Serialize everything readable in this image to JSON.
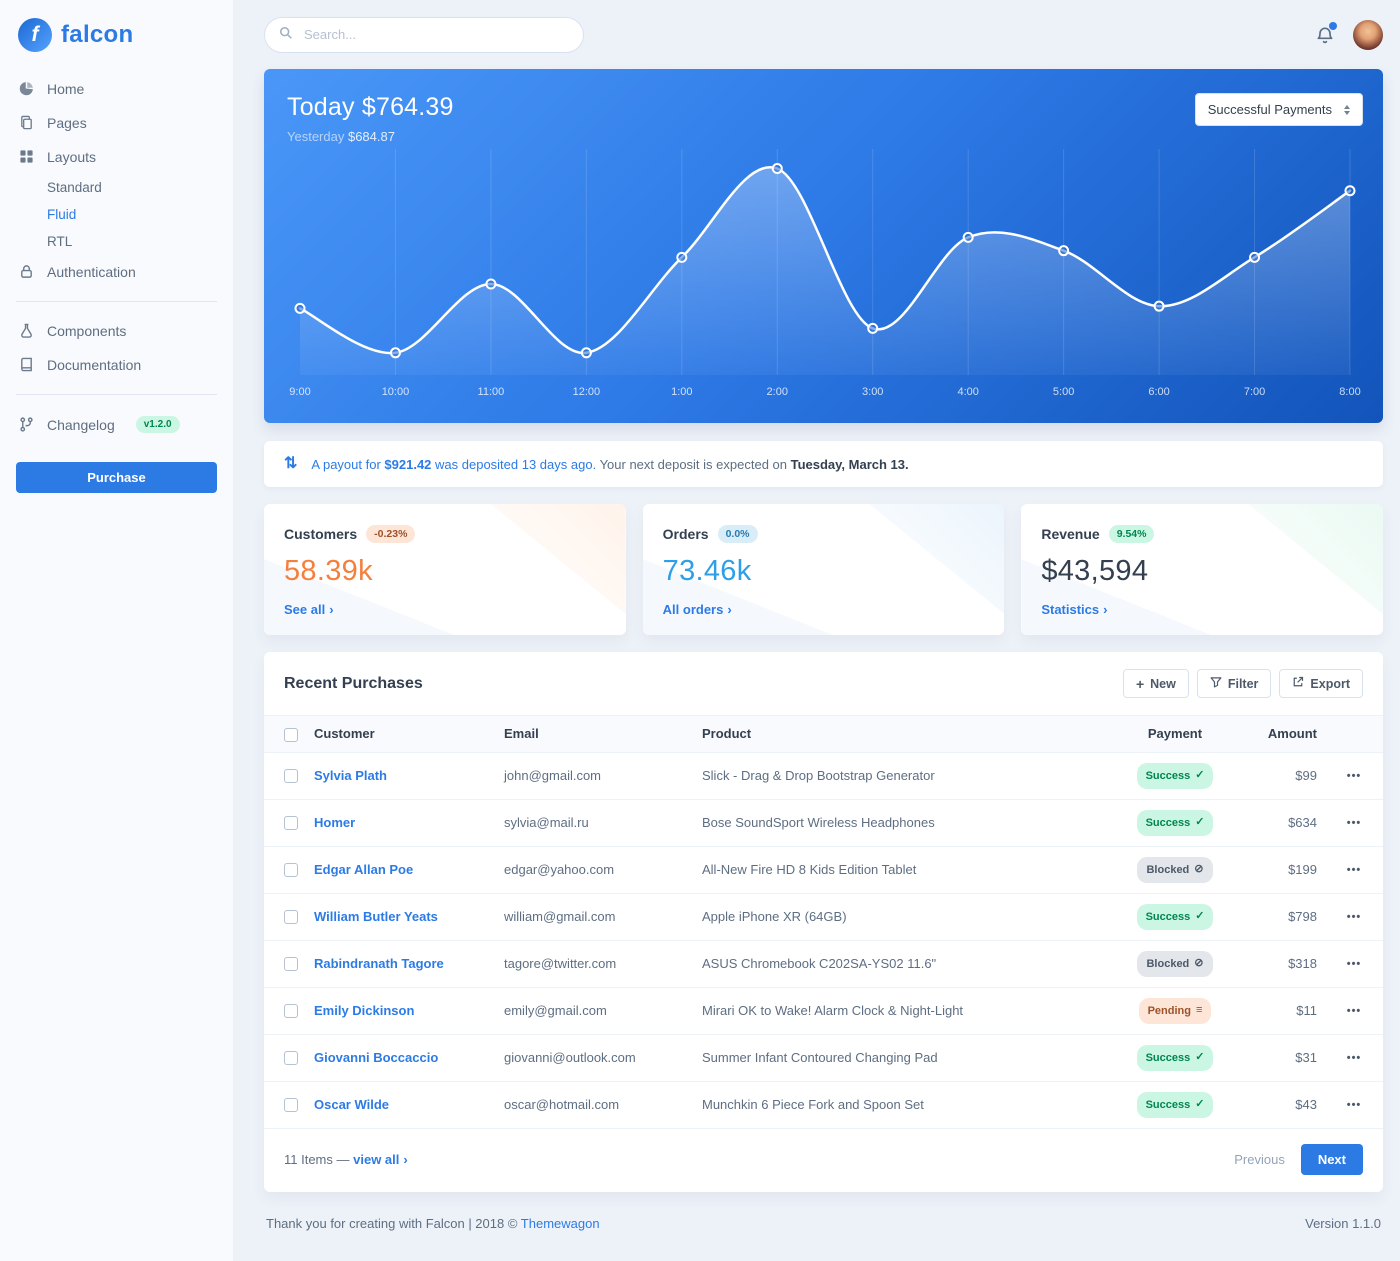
{
  "colors": {
    "primary": "#2c7be5",
    "chart_gradient_start": "#4a97f8",
    "chart_gradient_end": "#1254ba",
    "customers_value": "#f5803e",
    "orders_value": "#2e9fe6",
    "revenue_value": "#344050",
    "success_badge_bg": "#ccf6e4",
    "success_badge_text": "#00864e",
    "blocked_badge_bg": "#e3e6ea",
    "blocked_badge_text": "#4d5969",
    "pending_badge_bg": "#fde6d8",
    "pending_badge_text": "#9d5228"
  },
  "icons": {
    "brand_letter": "f",
    "chevron_right": "›",
    "ellipsis": "•••",
    "plus": "+",
    "payout_arrows": "⇅",
    "status": {
      "success": "✓",
      "blocked": "⊘",
      "pending": "≡"
    }
  },
  "brand": {
    "name": "falcon"
  },
  "topbar": {
    "search_placeholder": "Search..."
  },
  "sidebar": {
    "home": "Home",
    "pages": "Pages",
    "layouts": "Layouts",
    "standard": "Standard",
    "fluid": "Fluid",
    "rtl": "RTL",
    "authentication": "Authentication",
    "components": "Components",
    "documentation": "Documentation",
    "changelog": "Changelog",
    "changelog_badge": "v1.2.0",
    "purchase": "Purchase"
  },
  "payments_card": {
    "today_label": "Today",
    "today_value": "$764.39",
    "yesterday_label": "Yesterday",
    "yesterday_value": "$684.87",
    "select_value": "Successful Payments",
    "chart_data": {
      "type": "line",
      "x": [
        "9:00",
        "10:00",
        "11:00",
        "12:00",
        "1:00",
        "2:00",
        "3:00",
        "4:00",
        "5:00",
        "6:00",
        "7:00",
        "8:00"
      ],
      "values": [
        30,
        10,
        41,
        10,
        53,
        93,
        21,
        62,
        56,
        31,
        53,
        83
      ],
      "y_implied_range": [
        0,
        100
      ],
      "line_color": "#ffffff",
      "grid": "vertical-only",
      "legend": "none"
    }
  },
  "payout": {
    "link_prefix": "A payout for ",
    "amount": "$921.42",
    "link_suffix": " was deposited 13 days ago.",
    "middle": " Your next deposit is expected on ",
    "date": "Tuesday, March 13."
  },
  "stats": [
    {
      "title": "Customers",
      "badge": "-0.23%",
      "value": "58.39k",
      "link": "See all"
    },
    {
      "title": "Orders",
      "badge": "0.0%",
      "value": "73.46k",
      "link": "All orders"
    },
    {
      "title": "Revenue",
      "badge": "9.54%",
      "value": "$43,594",
      "link": "Statistics"
    }
  ],
  "purchases": {
    "title": "Recent Purchases",
    "new_label": "New",
    "filter_label": "Filter",
    "export_label": "Export",
    "columns": {
      "customer": "Customer",
      "email": "Email",
      "product": "Product",
      "payment": "Payment",
      "amount": "Amount"
    },
    "rows": [
      {
        "customer": "Sylvia Plath",
        "email": "john@gmail.com",
        "product": "Slick - Drag & Drop Bootstrap Generator",
        "payment": "Success",
        "status": "success",
        "amount": "$99"
      },
      {
        "customer": "Homer",
        "email": "sylvia@mail.ru",
        "product": "Bose SoundSport Wireless Headphones",
        "payment": "Success",
        "status": "success",
        "amount": "$634"
      },
      {
        "customer": "Edgar Allan Poe",
        "email": "edgar@yahoo.com",
        "product": "All-New Fire HD 8 Kids Edition Tablet",
        "payment": "Blocked",
        "status": "blocked",
        "amount": "$199"
      },
      {
        "customer": "William Butler Yeats",
        "email": "william@gmail.com",
        "product": "Apple iPhone XR (64GB)",
        "payment": "Success",
        "status": "success",
        "amount": "$798"
      },
      {
        "customer": "Rabindranath Tagore",
        "email": "tagore@twitter.com",
        "product": "ASUS Chromebook C202SA-YS02 11.6\"",
        "payment": "Blocked",
        "status": "blocked",
        "amount": "$318"
      },
      {
        "customer": "Emily Dickinson",
        "email": "emily@gmail.com",
        "product": "Mirari OK to Wake! Alarm Clock & Night-Light",
        "payment": "Pending",
        "status": "pending",
        "amount": "$11"
      },
      {
        "customer": "Giovanni Boccaccio",
        "email": "giovanni@outlook.com",
        "product": "Summer Infant Contoured Changing Pad",
        "payment": "Success",
        "status": "success",
        "amount": "$31"
      },
      {
        "customer": "Oscar Wilde",
        "email": "oscar@hotmail.com",
        "product": "Munchkin 6 Piece Fork and Spoon Set",
        "payment": "Success",
        "status": "success",
        "amount": "$43"
      }
    ],
    "items_text": "11 Items —",
    "view_all": "view all",
    "previous": "Previous",
    "next": "Next"
  },
  "footer": {
    "thanks": "Thank you for creating with Falcon | 2018 © ",
    "link": "Themewagon",
    "version": "Version 1.1.0"
  }
}
